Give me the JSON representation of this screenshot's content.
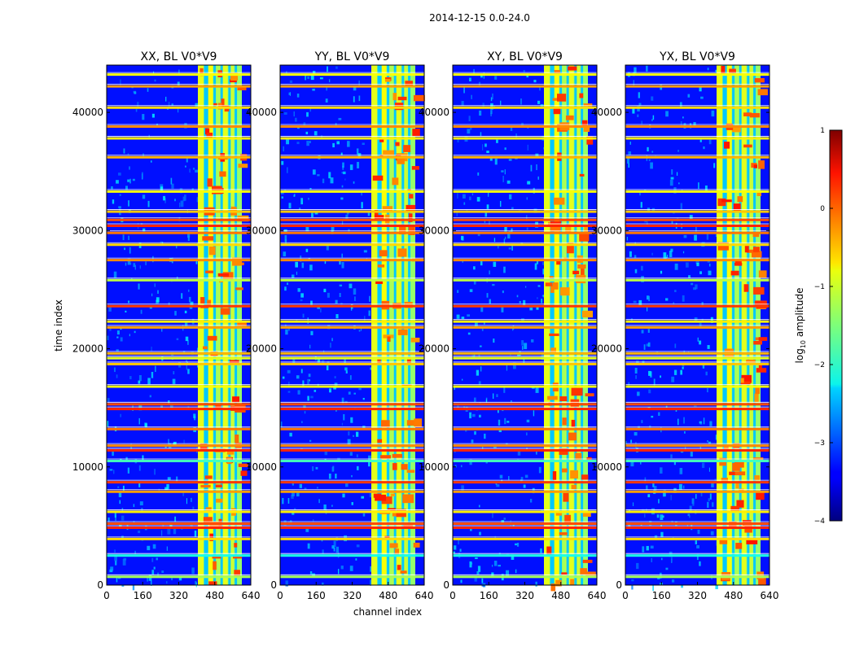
{
  "figure_title": "2014-12-15 0.0-24.0",
  "chart_data": {
    "type": "heatmap",
    "shared": {
      "xlabel": "channel index",
      "ylabel": "time index",
      "xlim": [
        0,
        640
      ],
      "ylim": [
        0,
        44000
      ],
      "xticks": [
        0,
        160,
        320,
        480,
        640
      ],
      "yticks": [
        0,
        10000,
        20000,
        30000,
        40000
      ],
      "colormap": "jet",
      "colorbar": {
        "label_prefix": "log",
        "label_subscript": "10",
        "label_suffix": " amplitude",
        "range": [
          -4,
          1
        ],
        "ticks": [
          1,
          0,
          -1,
          -2,
          -3,
          -4
        ],
        "tick_labels": [
          "1",
          "0",
          "−1",
          "−2",
          "−3",
          "−4"
        ]
      },
      "background_level": -3.3,
      "rfi_band_channels": [
        405,
        600
      ],
      "rfi_band_level": -1.2,
      "rfi_sub_bands": [
        {
          "from": 405,
          "to": 430,
          "level": -1.0
        },
        {
          "from": 445,
          "to": 470,
          "level": -0.9
        },
        {
          "from": 478,
          "to": 500,
          "level": -1.3
        },
        {
          "from": 512,
          "to": 535,
          "level": -1.0
        },
        {
          "from": 545,
          "to": 560,
          "level": -1.1
        },
        {
          "from": 575,
          "to": 600,
          "level": -1.4
        }
      ],
      "flagged_time_rows": [
        {
          "time": 700,
          "level": -1.3
        },
        {
          "time": 2500,
          "level": -2.0
        },
        {
          "time": 3900,
          "level": -0.7
        },
        {
          "time": 4850,
          "level": 0.2
        },
        {
          "time": 5200,
          "level": 0.0
        },
        {
          "time": 6200,
          "level": -0.8
        },
        {
          "time": 7900,
          "level": -0.4
        },
        {
          "time": 8700,
          "level": 0.1
        },
        {
          "time": 10500,
          "level": -1.8
        },
        {
          "time": 11400,
          "level": 0.2
        },
        {
          "time": 11800,
          "level": -0.3
        },
        {
          "time": 13200,
          "level": -0.2
        },
        {
          "time": 14900,
          "level": 0.2
        },
        {
          "time": 15300,
          "level": 0.0
        },
        {
          "time": 16800,
          "level": -0.9
        },
        {
          "time": 18700,
          "level": -0.6
        },
        {
          "time": 19200,
          "level": -1.0
        },
        {
          "time": 19600,
          "level": -0.5
        },
        {
          "time": 21800,
          "level": -0.4
        },
        {
          "time": 22300,
          "level": -0.8
        },
        {
          "time": 23600,
          "level": 0.1
        },
        {
          "time": 25800,
          "level": -1.2
        },
        {
          "time": 27500,
          "level": -0.3
        },
        {
          "time": 28800,
          "level": -0.7
        },
        {
          "time": 29800,
          "level": -0.2
        },
        {
          "time": 30400,
          "level": 0.2
        },
        {
          "time": 30900,
          "level": 0.0
        },
        {
          "time": 31600,
          "level": -0.6
        },
        {
          "time": 33300,
          "level": -0.9
        },
        {
          "time": 36200,
          "level": -0.5
        },
        {
          "time": 37800,
          "level": -0.8
        },
        {
          "time": 38800,
          "level": -0.3
        },
        {
          "time": 40400,
          "level": -0.7
        },
        {
          "time": 42200,
          "level": -0.4
        },
        {
          "time": 43200,
          "level": -0.9
        }
      ]
    },
    "panels": [
      {
        "title": "XX, BL V0*V9",
        "polarization": "XX"
      },
      {
        "title": "YY, BL V0*V9",
        "polarization": "YY"
      },
      {
        "title": "XY, BL V0*V9",
        "polarization": "XY"
      },
      {
        "title": "YX, BL V0*V9",
        "polarization": "YX"
      }
    ]
  }
}
